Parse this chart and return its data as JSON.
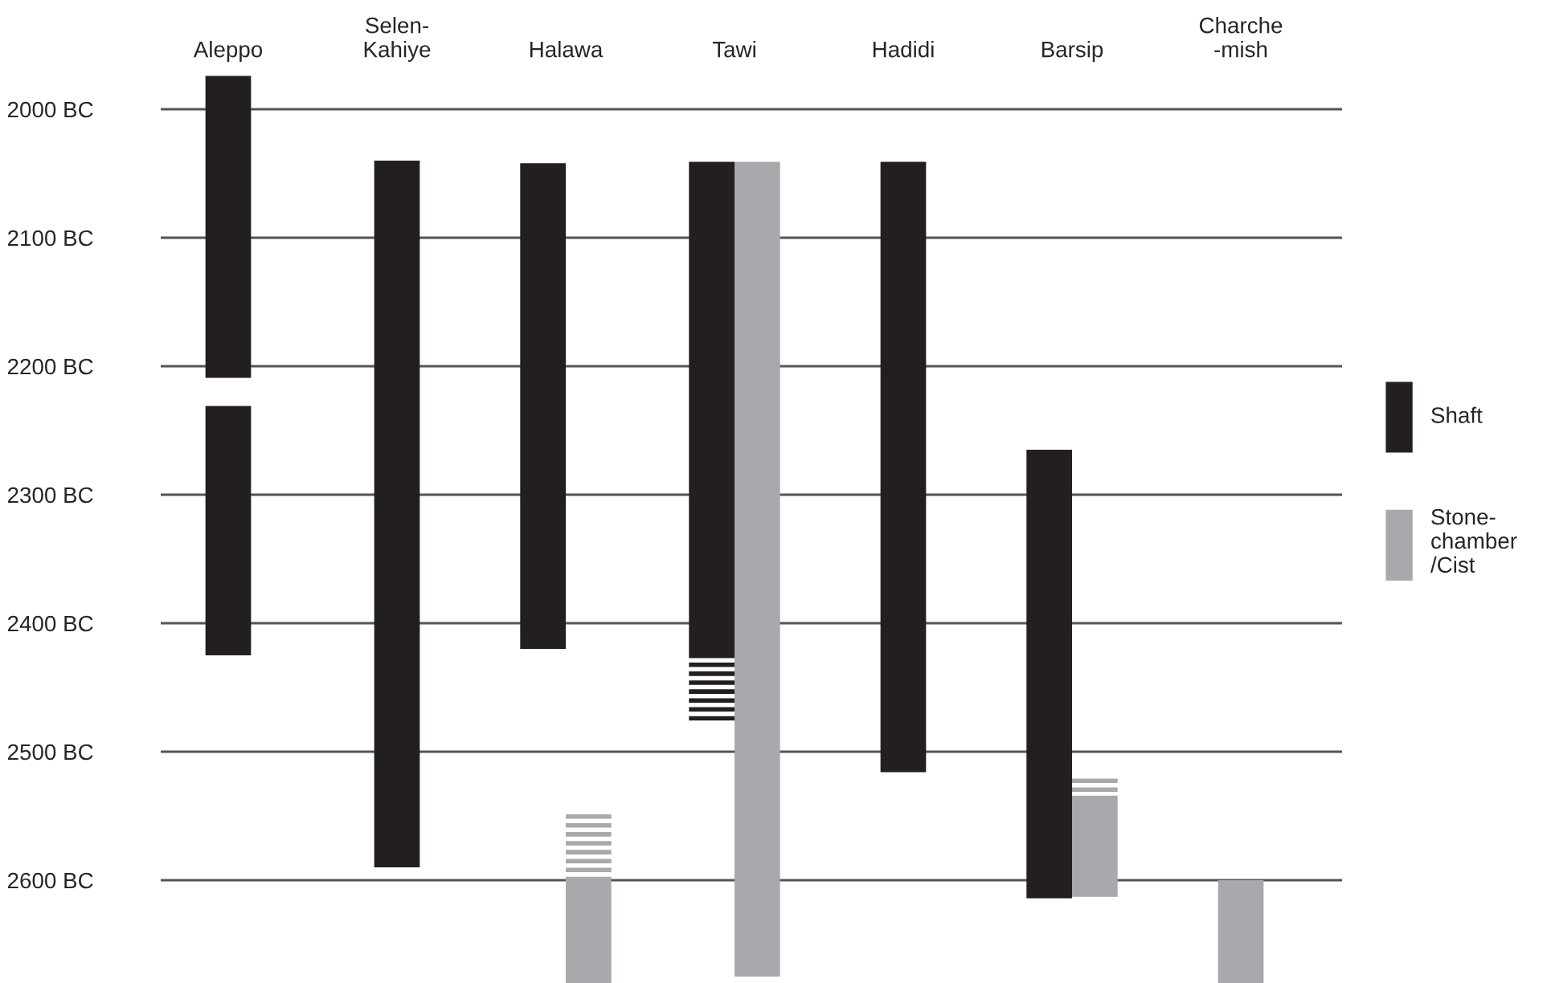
{
  "chart_data": {
    "type": "bar",
    "categories": [
      "Aleppo",
      "Selen-\nKahiye",
      "Halawa",
      "Tawi",
      "Hadidi",
      "Barsip",
      "Charche\n-mish"
    ],
    "series": [
      {
        "name": "Shaft",
        "color": "#231f20",
        "base": [
          1974,
          2040,
          2042,
          2041,
          2041,
          2265,
          null
        ],
        "values": [
          235,
          550,
          378,
          386,
          475,
          349,
          null
        ]
      },
      {
        "color": "#231f20",
        "base": [
          2231,
          null,
          null,
          null,
          null,
          null,
          null
        ],
        "values": [
          194,
          null,
          null,
          null,
          null,
          null,
          null
        ]
      },
      {
        "color": "#231f20",
        "line_style": "dashed",
        "base": [
          null,
          null,
          null,
          2427,
          null,
          null,
          null
        ],
        "values": [
          null,
          null,
          null,
          49,
          null,
          null,
          null
        ]
      },
      {
        "name": "Stone-\nchamber\n/Cist",
        "color": "#a7a9ac",
        "base": [
          null,
          null,
          2600,
          2041,
          null,
          2534,
          2600
        ],
        "values": [
          null,
          null,
          80,
          634,
          null,
          79,
          80
        ]
      },
      {
        "color": "#a7a9ac",
        "line_style": "dashed",
        "base": [
          null,
          null,
          2548,
          null,
          null,
          2519,
          null
        ],
        "values": [
          null,
          null,
          52,
          null,
          null,
          15,
          null
        ]
      }
    ],
    "ylim": [
      2680,
      1970
    ],
    "yticks": [
      {
        "value": 2000,
        "label": "2000 BC"
      },
      {
        "value": 2100,
        "label": "2100 BC"
      },
      {
        "value": 2200,
        "label": "2200 BC"
      },
      {
        "value": 2300,
        "label": "2300 BC"
      },
      {
        "value": 2400,
        "label": "2400 BC"
      },
      {
        "value": 2500,
        "label": "2500 BC"
      },
      {
        "value": 2600,
        "label": "2600 BC"
      }
    ],
    "grid": "y",
    "legend": "right"
  }
}
